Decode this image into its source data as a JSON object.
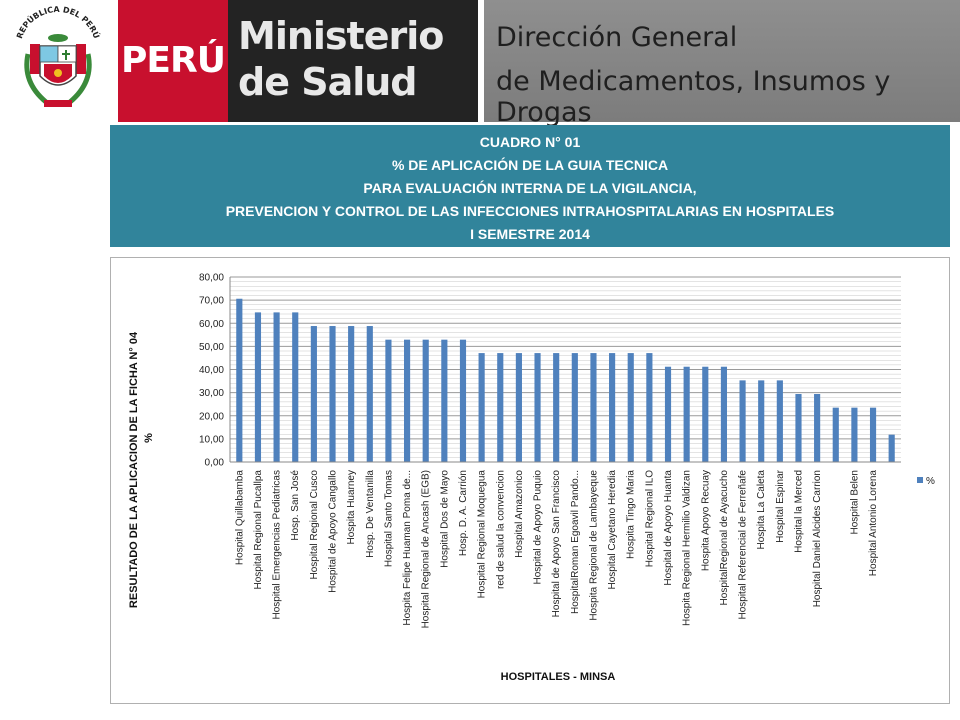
{
  "header": {
    "peru": "PERÚ",
    "ministry_line1": "Ministerio",
    "ministry_line2": "de Salud",
    "directorate_line1": "Dirección General",
    "directorate_line2": "de Medicamentos, Insumos y Drogas",
    "crest_text": "REPÚBLICA DEL PERÚ",
    "colors": {
      "peru_red": "#c8102e",
      "ministry_dark": "#232323",
      "directorate_gray": "#858585"
    }
  },
  "title_box": {
    "lines": [
      "CUADRO N° 01",
      "% DE APLICACIÓN  DE LA GUIA TECNICA",
      "PARA EVALUACIÓN INTERNA DE LA VIGILANCIA,",
      "PREVENCION Y CONTROL DE LAS INFECCIONES INTRAHOSPITALARIAS EN HOSPITALES",
      "I SEMESTRE 2014"
    ],
    "background": "#31849b"
  },
  "chart_data": {
    "type": "bar",
    "title": "",
    "ylabel_line1": "RESULTADO DE LA APLICACION DE LA FICHA N° 04",
    "ylabel_line2": "%",
    "xlabel": "HOSPITALES  -  MINSA",
    "ylim": [
      0,
      80
    ],
    "yticks": [
      "0,00",
      "10,00",
      "20,00",
      "30,00",
      "40,00",
      "50,00",
      "60,00",
      "70,00",
      "80,00"
    ],
    "grid": true,
    "legend_position": "right",
    "series": [
      {
        "name": "%",
        "color": "#4f81bd",
        "values": [
          70.6,
          64.7,
          64.7,
          64.7,
          58.8,
          58.8,
          58.8,
          58.8,
          52.9,
          52.9,
          52.9,
          52.9,
          52.9,
          47.1,
          47.1,
          47.1,
          47.1,
          47.1,
          47.1,
          47.1,
          47.1,
          47.1,
          47.1,
          41.2,
          41.2,
          41.2,
          41.2,
          35.3,
          35.3,
          35.3,
          29.4,
          29.4,
          23.5,
          23.5,
          23.5,
          11.8
        ]
      }
    ],
    "categories": [
      "Hospital Quillabamba",
      "Hospital Regional Pucallpa",
      "Hospital Emergencias Pediatricas",
      "Hosp. San José",
      "Hospital Regional Cusco",
      "Hospital de Apoyo Cangallo",
      "Hospita Huarney",
      "Hosp. De Ventanilla",
      "Hospital Santo Tomas",
      "Hospita Felipe Huaman Poma de...",
      "Hospital Regional de Ancash  (EGB)",
      "Hospital Dos de Mayo",
      "Hosp. D. A. Carrión",
      "Hospital Regional Moquegua",
      "red de salud la convencion",
      "Hospital Amazonico",
      "Hospital de Apoyo Puquio",
      "Hospital de Apoyo San Francisco",
      "HospitalRoman Egoavil Pando...",
      "Hospita Regional de Lambayeque",
      "Hospital Cayetano Heredia",
      "Hospita Tingo Maria",
      "Hospital Regional ILO",
      "Hospital de Apoyo Huanta",
      "Hospita Regional Hermilio Valdizan",
      "Hospita Apoyo Recuay",
      "HospitalRegional de Ayacucho",
      "Hospital Referencial de Ferreñafe",
      "Hospita La Caleta",
      "Hospital Espinar",
      "Hospital la Merced",
      "Hospital Daniel Alcides Carrion",
      "",
      "Hospital Belen",
      "Hospital Antonio Lorena",
      ""
    ]
  }
}
